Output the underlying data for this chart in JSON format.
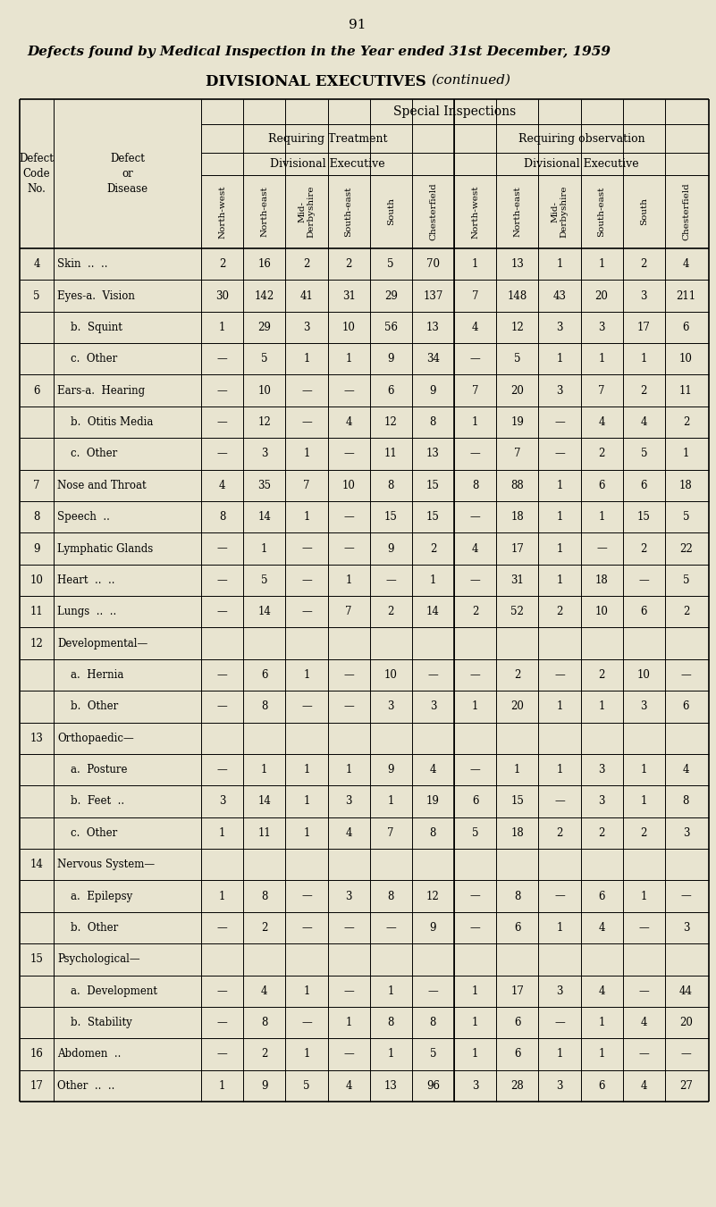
{
  "page_number": "91",
  "title": "Defects found by Medical Inspection in the Year ended 31st December, 1959",
  "subtitle": "DIVISIONAL EXECUTIVES",
  "subtitle_italic": "continued",
  "bg_color": "#e8e4d0",
  "header_special": "Special Inspections",
  "header_treatment": "Requiring Treatment",
  "header_observation": "Requiring observation",
  "header_div_exec": "Divisional Executive",
  "col_headers": [
    "North-west",
    "North-east",
    "Mid-\nDerbyshire",
    "South-east",
    "South",
    "Chesterfield",
    "North-west",
    "North-east",
    "Mid-\nDerbyshire",
    "South-east",
    "South",
    "Chesterfield"
  ],
  "rows": [
    {
      "code": "4",
      "disease": "Skin  ..  ..",
      "data": [
        "2",
        "16",
        "2",
        "2",
        "5",
        "70",
        "1",
        "13",
        "1",
        "1",
        "2",
        "4"
      ]
    },
    {
      "code": "5",
      "disease": "Eyes-a.  Vision",
      "data": [
        "30",
        "142",
        "41",
        "31",
        "29",
        "137",
        "7",
        "148",
        "43",
        "20",
        "3",
        "211"
      ]
    },
    {
      "code": "",
      "disease": "    b.  Squint",
      "data": [
        "1",
        "29",
        "3",
        "10",
        "56",
        "13",
        "4",
        "12",
        "3",
        "3",
        "17",
        "6"
      ]
    },
    {
      "code": "",
      "disease": "    c.  Other",
      "data": [
        "—",
        "5",
        "1",
        "1",
        "9",
        "34",
        "—",
        "5",
        "1",
        "1",
        "1",
        "10"
      ]
    },
    {
      "code": "6",
      "disease": "Ears-a.  Hearing",
      "data": [
        "—",
        "10",
        "—",
        "—",
        "6",
        "9",
        "7",
        "20",
        "3",
        "7",
        "2",
        "11"
      ]
    },
    {
      "code": "",
      "disease": "    b.  Otitis Media",
      "data": [
        "—",
        "12",
        "—",
        "4",
        "12",
        "8",
        "1",
        "19",
        "—",
        "4",
        "4",
        "2"
      ]
    },
    {
      "code": "",
      "disease": "    c.  Other",
      "data": [
        "—",
        "3",
        "1",
        "—",
        "11",
        "13",
        "—",
        "7",
        "—",
        "2",
        "5",
        "1"
      ]
    },
    {
      "code": "7",
      "disease": "Nose and Throat",
      "data": [
        "4",
        "35",
        "7",
        "10",
        "8",
        "15",
        "8",
        "88",
        "1",
        "6",
        "6",
        "18"
      ]
    },
    {
      "code": "8",
      "disease": "Speech  ..",
      "data": [
        "8",
        "14",
        "1",
        "—",
        "15",
        "15",
        "—",
        "18",
        "1",
        "1",
        "15",
        "5"
      ]
    },
    {
      "code": "9",
      "disease": "Lymphatic Glands",
      "data": [
        "—",
        "1",
        "—",
        "—",
        "9",
        "2",
        "4",
        "17",
        "1",
        "—",
        "2",
        "22"
      ]
    },
    {
      "code": "10",
      "disease": "Heart  ..  ..",
      "data": [
        "—",
        "5",
        "—",
        "1",
        "—",
        "1",
        "—",
        "31",
        "1",
        "18",
        "—",
        "5"
      ]
    },
    {
      "code": "11",
      "disease": "Lungs  ..  ..",
      "data": [
        "—",
        "14",
        "—",
        "7",
        "2",
        "14",
        "2",
        "52",
        "2",
        "10",
        "6",
        "2"
      ]
    },
    {
      "code": "12",
      "disease": "Developmental—",
      "data": [
        "",
        "",
        "",
        "",
        "",
        "",
        "",
        "",
        "",
        "",
        "",
        ""
      ]
    },
    {
      "code": "",
      "disease": "    a.  Hernia",
      "data": [
        "—",
        "6",
        "1",
        "—",
        "10",
        "—",
        "—",
        "2",
        "—",
        "2",
        "10",
        "—"
      ]
    },
    {
      "code": "",
      "disease": "    b.  Other",
      "data": [
        "—",
        "8",
        "—",
        "—",
        "3",
        "3",
        "1",
        "20",
        "1",
        "1",
        "3",
        "6"
      ]
    },
    {
      "code": "13",
      "disease": "Orthopaedic—",
      "data": [
        "",
        "",
        "",
        "",
        "",
        "",
        "",
        "",
        "",
        "",
        "",
        ""
      ]
    },
    {
      "code": "",
      "disease": "    a.  Posture",
      "data": [
        "—",
        "1",
        "1",
        "1",
        "9",
        "4",
        "—",
        "1",
        "1",
        "3",
        "1",
        "4"
      ]
    },
    {
      "code": "",
      "disease": "    b.  Feet  ..",
      "data": [
        "3",
        "14",
        "1",
        "3",
        "1",
        "19",
        "6",
        "15",
        "—",
        "3",
        "1",
        "8"
      ]
    },
    {
      "code": "",
      "disease": "    c.  Other",
      "data": [
        "1",
        "11",
        "1",
        "4",
        "7",
        "8",
        "5",
        "18",
        "2",
        "2",
        "2",
        "3"
      ]
    },
    {
      "code": "14",
      "disease": "Nervous System—",
      "data": [
        "",
        "",
        "",
        "",
        "",
        "",
        "",
        "",
        "",
        "",
        "",
        ""
      ]
    },
    {
      "code": "",
      "disease": "    a.  Epilepsy",
      "data": [
        "1",
        "8",
        "—",
        "3",
        "8",
        "12",
        "—",
        "8",
        "—",
        "6",
        "1",
        "—"
      ]
    },
    {
      "code": "",
      "disease": "    b.  Other",
      "data": [
        "—",
        "2",
        "—",
        "—",
        "—",
        "9",
        "—",
        "6",
        "1",
        "4",
        "—",
        "3"
      ]
    },
    {
      "code": "15",
      "disease": "Psychological—",
      "data": [
        "",
        "",
        "",
        "",
        "",
        "",
        "",
        "",
        "",
        "",
        "",
        ""
      ]
    },
    {
      "code": "",
      "disease": "    a.  Development",
      "data": [
        "—",
        "4",
        "1",
        "—",
        "1",
        "—",
        "1",
        "17",
        "3",
        "4",
        "—",
        "44"
      ]
    },
    {
      "code": "",
      "disease": "    b.  Stability",
      "data": [
        "—",
        "8",
        "—",
        "1",
        "8",
        "8",
        "1",
        "6",
        "—",
        "1",
        "4",
        "20"
      ]
    },
    {
      "code": "16",
      "disease": "Abdomen  ..",
      "data": [
        "—",
        "2",
        "1",
        "—",
        "1",
        "5",
        "1",
        "6",
        "1",
        "1",
        "—",
        "—"
      ]
    },
    {
      "code": "17",
      "disease": "Other  ..  ..",
      "data": [
        "1",
        "9",
        "5",
        "4",
        "13",
        "96",
        "3",
        "28",
        "3",
        "6",
        "4",
        "27"
      ]
    }
  ]
}
